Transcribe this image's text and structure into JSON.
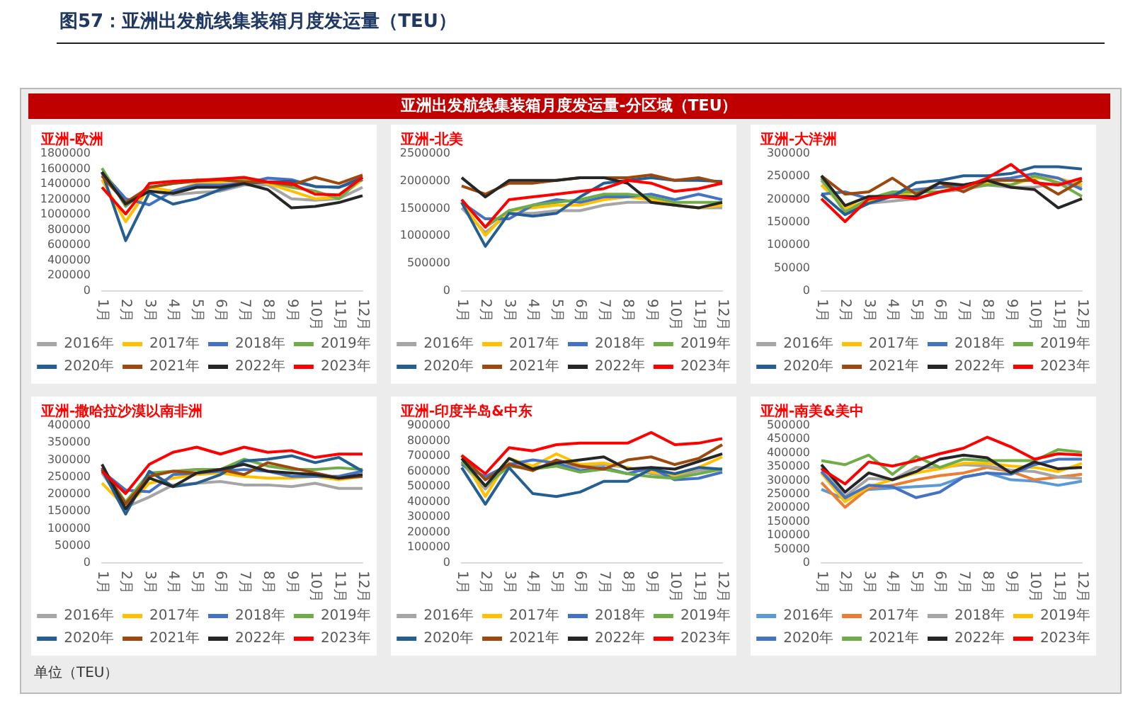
{
  "chart_data": [
    {
      "type": "other",
      "title": "图57：亚洲出发航线集装箱月度发运量（TEU）",
      "subtitle": "亚洲出发航线集装箱月度发运量-分区域（TEU）",
      "annotations": [
        "单位（TEU）"
      ]
    },
    {
      "type": "line",
      "title": "亚洲-欧洲",
      "categories": [
        "1月",
        "2月",
        "3月",
        "4月",
        "5月",
        "6月",
        "7月",
        "8月",
        "9月",
        "10月",
        "11月",
        "12月"
      ],
      "ylim": [
        0,
        1800000
      ],
      "yticks": [
        0,
        200000,
        400000,
        600000,
        800000,
        1000000,
        1200000,
        1400000,
        1600000,
        1800000
      ],
      "legend": "bottom",
      "marker": "none",
      "line_style": "solid",
      "series": [
        {
          "name": "2016年",
          "color": "#a5a5a5",
          "values": [
            1500000,
            1150000,
            1300000,
            1250000,
            1280000,
            1300000,
            1380000,
            1380000,
            1200000,
            1180000,
            1200000,
            1350000
          ]
        },
        {
          "name": "2017年",
          "color": "#ffc000",
          "values": [
            1450000,
            900000,
            1350000,
            1300000,
            1400000,
            1420000,
            1450000,
            1400000,
            1300000,
            1200000,
            1220000,
            1450000
          ]
        },
        {
          "name": "2018年",
          "color": "#4472c4",
          "values": [
            1550000,
            1200000,
            1120000,
            1300000,
            1380000,
            1380000,
            1400000,
            1470000,
            1450000,
            1360000,
            1350000,
            1450000
          ]
        },
        {
          "name": "2019年",
          "color": "#70ad47",
          "values": [
            1600000,
            1100000,
            1350000,
            1400000,
            1450000,
            1450000,
            1450000,
            1420000,
            1350000,
            1300000,
            1200000,
            1480000
          ]
        },
        {
          "name": "2020年",
          "color": "#255e91",
          "values": [
            1550000,
            650000,
            1280000,
            1130000,
            1200000,
            1320000,
            1400000,
            1420000,
            1430000,
            1360000,
            1350000,
            1480000
          ]
        },
        {
          "name": "2021年",
          "color": "#9e480e",
          "values": [
            1500000,
            1150000,
            1350000,
            1400000,
            1430000,
            1450000,
            1420000,
            1420000,
            1380000,
            1480000,
            1400000,
            1510000
          ]
        },
        {
          "name": "2022年",
          "color": "#262626",
          "values": [
            1550000,
            1130000,
            1300000,
            1270000,
            1350000,
            1350000,
            1400000,
            1320000,
            1080000,
            1100000,
            1150000,
            1240000
          ]
        },
        {
          "name": "2023年",
          "color": "#ff0000",
          "values": [
            1350000,
            1000000,
            1400000,
            1430000,
            1440000,
            1460000,
            1480000,
            1420000,
            1400000,
            1260000,
            1250000,
            1480000
          ]
        }
      ]
    },
    {
      "type": "line",
      "title": "亚洲-北美",
      "categories": [
        "1月",
        "2月",
        "3月",
        "4月",
        "5月",
        "6月",
        "7月",
        "8月",
        "9月",
        "10月",
        "11月",
        "12月"
      ],
      "ylim": [
        0,
        2500000
      ],
      "yticks": [
        0,
        500000,
        1000000,
        1500000,
        2000000,
        2500000
      ],
      "legend": "bottom",
      "marker": "none",
      "line_style": "solid",
      "series": [
        {
          "name": "2016年",
          "color": "#a5a5a5",
          "values": [
            1500000,
            1050000,
            1400000,
            1400000,
            1450000,
            1450000,
            1550000,
            1600000,
            1600000,
            1550000,
            1500000,
            1500000
          ]
        },
        {
          "name": "2017年",
          "color": "#ffc000",
          "values": [
            1600000,
            1000000,
            1450000,
            1500000,
            1550000,
            1550000,
            1650000,
            1700000,
            1650000,
            1550000,
            1500000,
            1550000
          ]
        },
        {
          "name": "2018年",
          "color": "#4472c4",
          "values": [
            1600000,
            1300000,
            1300000,
            1550000,
            1650000,
            1600000,
            1700000,
            1700000,
            1750000,
            1650000,
            1750000,
            1650000
          ]
        },
        {
          "name": "2019年",
          "color": "#70ad47",
          "values": [
            1650000,
            1150000,
            1450000,
            1550000,
            1600000,
            1650000,
            1750000,
            1750000,
            1700000,
            1600000,
            1600000,
            1600000
          ]
        },
        {
          "name": "2020年",
          "color": "#255e91",
          "values": [
            1600000,
            800000,
            1400000,
            1350000,
            1400000,
            1700000,
            1950000,
            2000000,
            2050000,
            2000000,
            2000000,
            1980000
          ]
        },
        {
          "name": "2021年",
          "color": "#9e480e",
          "values": [
            1900000,
            1750000,
            1950000,
            1950000,
            2000000,
            2050000,
            2050000,
            2050000,
            2100000,
            2000000,
            2050000,
            1950000
          ]
        },
        {
          "name": "2022年",
          "color": "#262626",
          "values": [
            2050000,
            1700000,
            2000000,
            2000000,
            2000000,
            2050000,
            2050000,
            1950000,
            1600000,
            1550000,
            1500000,
            1600000
          ]
        },
        {
          "name": "2023年",
          "color": "#ff0000",
          "values": [
            1650000,
            1150000,
            1650000,
            1700000,
            1750000,
            1800000,
            1850000,
            2000000,
            1950000,
            1800000,
            1850000,
            1950000
          ]
        }
      ]
    },
    {
      "type": "line",
      "title": "亚洲-大洋洲",
      "categories": [
        "1月",
        "2月",
        "3月",
        "4月",
        "5月",
        "6月",
        "7月",
        "8月",
        "9月",
        "10月",
        "11月",
        "12月"
      ],
      "ylim": [
        0,
        300000
      ],
      "yticks": [
        0,
        50000,
        100000,
        150000,
        200000,
        250000,
        300000
      ],
      "legend": "bottom",
      "marker": "none",
      "line_style": "solid",
      "series": [
        {
          "name": "2016年",
          "color": "#a5a5a5",
          "values": [
            240000,
            175000,
            190000,
            195000,
            200000,
            215000,
            220000,
            230000,
            225000,
            225000,
            235000,
            225000
          ]
        },
        {
          "name": "2017年",
          "color": "#ffc000",
          "values": [
            230000,
            180000,
            195000,
            205000,
            215000,
            225000,
            225000,
            235000,
            230000,
            245000,
            245000,
            230000
          ]
        },
        {
          "name": "2018年",
          "color": "#4472c4",
          "values": [
            210000,
            215000,
            200000,
            210000,
            220000,
            225000,
            230000,
            240000,
            245000,
            255000,
            245000,
            220000
          ]
        },
        {
          "name": "2019年",
          "color": "#70ad47",
          "values": [
            245000,
            170000,
            200000,
            215000,
            215000,
            215000,
            225000,
            230000,
            230000,
            250000,
            235000,
            205000
          ]
        },
        {
          "name": "2020年",
          "color": "#255e91",
          "values": [
            210000,
            165000,
            190000,
            205000,
            235000,
            240000,
            250000,
            250000,
            255000,
            270000,
            270000,
            265000
          ]
        },
        {
          "name": "2021年",
          "color": "#9e480e",
          "values": [
            250000,
            210000,
            215000,
            245000,
            210000,
            235000,
            215000,
            240000,
            240000,
            240000,
            210000,
            240000
          ]
        },
        {
          "name": "2022年",
          "color": "#262626",
          "values": [
            250000,
            185000,
            205000,
            205000,
            205000,
            235000,
            230000,
            240000,
            225000,
            220000,
            180000,
            200000
          ]
        },
        {
          "name": "2023年",
          "color": "#ff0000",
          "values": [
            200000,
            150000,
            200000,
            205000,
            200000,
            215000,
            225000,
            245000,
            275000,
            235000,
            230000,
            245000
          ]
        }
      ]
    },
    {
      "type": "line",
      "title": "亚洲-撒哈拉沙漠以南非洲",
      "categories": [
        "1月",
        "2月",
        "3月",
        "4月",
        "5月",
        "6月",
        "7月",
        "8月",
        "9月",
        "10月",
        "11月",
        "12月"
      ],
      "ylim": [
        0,
        400000
      ],
      "yticks": [
        0,
        50000,
        100000,
        150000,
        200000,
        250000,
        300000,
        350000,
        400000
      ],
      "legend": "bottom",
      "marker": "none",
      "line_style": "solid",
      "series": [
        {
          "name": "2016年",
          "color": "#a5a5a5",
          "values": [
            260000,
            160000,
            190000,
            225000,
            230000,
            235000,
            225000,
            225000,
            220000,
            230000,
            215000,
            215000
          ]
        },
        {
          "name": "2017年",
          "color": "#ffc000",
          "values": [
            230000,
            160000,
            230000,
            245000,
            255000,
            260000,
            250000,
            245000,
            245000,
            250000,
            240000,
            250000
          ]
        },
        {
          "name": "2018年",
          "color": "#4472c4",
          "values": [
            265000,
            210000,
            205000,
            255000,
            260000,
            265000,
            270000,
            265000,
            250000,
            250000,
            250000,
            265000
          ]
        },
        {
          "name": "2019年",
          "color": "#70ad47",
          "values": [
            275000,
            175000,
            260000,
            265000,
            270000,
            270000,
            300000,
            280000,
            270000,
            270000,
            275000,
            270000
          ]
        },
        {
          "name": "2020年",
          "color": "#255e91",
          "values": [
            270000,
            140000,
            265000,
            220000,
            230000,
            255000,
            295000,
            300000,
            310000,
            290000,
            305000,
            265000
          ]
        },
        {
          "name": "2021年",
          "color": "#9e480e",
          "values": [
            275000,
            170000,
            250000,
            265000,
            260000,
            270000,
            255000,
            290000,
            275000,
            260000,
            245000,
            250000
          ]
        },
        {
          "name": "2022年",
          "color": "#262626",
          "values": [
            285000,
            155000,
            245000,
            220000,
            260000,
            270000,
            285000,
            265000,
            260000,
            255000,
            245000,
            255000
          ]
        },
        {
          "name": "2023年",
          "color": "#ff0000",
          "values": [
            265000,
            200000,
            285000,
            320000,
            335000,
            315000,
            335000,
            320000,
            325000,
            305000,
            315000,
            315000
          ]
        }
      ]
    },
    {
      "type": "line",
      "title": "亚洲-印度半岛&中东",
      "categories": [
        "1月",
        "2月",
        "3月",
        "4月",
        "5月",
        "6月",
        "7月",
        "8月",
        "9月",
        "10月",
        "11月",
        "12月"
      ],
      "ylim": [
        0,
        900000
      ],
      "yticks": [
        0,
        100000,
        200000,
        300000,
        400000,
        500000,
        600000,
        700000,
        800000,
        900000
      ],
      "legend": "bottom",
      "marker": "none",
      "line_style": "solid",
      "series": [
        {
          "name": "2016年",
          "color": "#a5a5a5",
          "values": [
            650000,
            480000,
            650000,
            620000,
            640000,
            620000,
            640000,
            620000,
            580000,
            560000,
            600000,
            610000
          ]
        },
        {
          "name": "2017年",
          "color": "#ffc000",
          "values": [
            700000,
            430000,
            680000,
            630000,
            710000,
            640000,
            650000,
            620000,
            590000,
            570000,
            620000,
            690000
          ]
        },
        {
          "name": "2018年",
          "color": "#4472c4",
          "values": [
            640000,
            560000,
            640000,
            670000,
            650000,
            600000,
            620000,
            580000,
            620000,
            540000,
            550000,
            590000
          ]
        },
        {
          "name": "2019年",
          "color": "#70ad47",
          "values": [
            660000,
            500000,
            630000,
            610000,
            630000,
            590000,
            610000,
            580000,
            560000,
            550000,
            580000,
            610000
          ]
        },
        {
          "name": "2020年",
          "color": "#255e91",
          "values": [
            620000,
            380000,
            620000,
            450000,
            430000,
            460000,
            530000,
            530000,
            610000,
            580000,
            620000,
            610000
          ]
        },
        {
          "name": "2021年",
          "color": "#9e480e",
          "values": [
            700000,
            540000,
            640000,
            600000,
            670000,
            630000,
            610000,
            670000,
            690000,
            640000,
            680000,
            770000
          ]
        },
        {
          "name": "2022年",
          "color": "#262626",
          "values": [
            680000,
            500000,
            680000,
            610000,
            650000,
            670000,
            690000,
            610000,
            620000,
            610000,
            660000,
            710000
          ]
        },
        {
          "name": "2023年",
          "color": "#ff0000",
          "values": [
            700000,
            580000,
            750000,
            730000,
            770000,
            780000,
            780000,
            780000,
            850000,
            770000,
            780000,
            810000
          ]
        }
      ]
    },
    {
      "type": "line",
      "title": "亚洲-南美&美中",
      "categories": [
        "1月",
        "2月",
        "3月",
        "4月",
        "5月",
        "6月",
        "7月",
        "8月",
        "9月",
        "10月",
        "11月",
        "12月"
      ],
      "ylim": [
        0,
        500000
      ],
      "yticks": [
        0,
        50000,
        100000,
        150000,
        200000,
        250000,
        300000,
        350000,
        400000,
        450000,
        500000
      ],
      "legend": "bottom",
      "marker": "none",
      "line_style": "solid",
      "series": [
        {
          "name": "2016年",
          "color": "#5b9bd5",
          "values": [
            265000,
            230000,
            265000,
            270000,
            275000,
            280000,
            310000,
            325000,
            300000,
            295000,
            280000,
            295000
          ]
        },
        {
          "name": "2017年",
          "color": "#ed7d31",
          "values": [
            290000,
            200000,
            270000,
            280000,
            300000,
            315000,
            325000,
            345000,
            330000,
            300000,
            310000,
            320000
          ]
        },
        {
          "name": "2018年",
          "color": "#a5a5a5",
          "values": [
            345000,
            240000,
            305000,
            300000,
            345000,
            345000,
            355000,
            350000,
            335000,
            330000,
            310000,
            305000
          ]
        },
        {
          "name": "2019年",
          "color": "#ffc000",
          "values": [
            325000,
            220000,
            275000,
            300000,
            325000,
            340000,
            360000,
            360000,
            350000,
            345000,
            330000,
            360000
          ]
        },
        {
          "name": "2020年",
          "color": "#4472c4",
          "values": [
            330000,
            235000,
            280000,
            275000,
            235000,
            255000,
            310000,
            325000,
            320000,
            355000,
            375000,
            375000
          ]
        },
        {
          "name": "2021年",
          "color": "#70ad47",
          "values": [
            370000,
            355000,
            390000,
            320000,
            385000,
            345000,
            375000,
            370000,
            370000,
            370000,
            410000,
            400000
          ]
        },
        {
          "name": "2022年",
          "color": "#262626",
          "values": [
            355000,
            255000,
            325000,
            300000,
            330000,
            375000,
            390000,
            380000,
            325000,
            365000,
            340000,
            345000
          ]
        },
        {
          "name": "2023年",
          "color": "#ff0000",
          "values": [
            340000,
            285000,
            365000,
            350000,
            370000,
            395000,
            415000,
            455000,
            420000,
            375000,
            395000,
            390000
          ]
        }
      ]
    }
  ]
}
